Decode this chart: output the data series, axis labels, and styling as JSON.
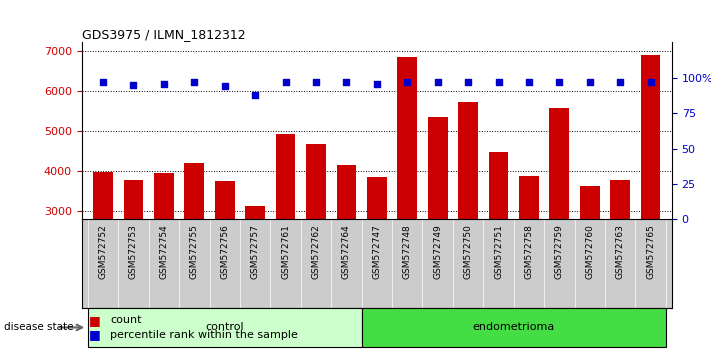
{
  "title": "GDS3975 / ILMN_1812312",
  "samples": [
    "GSM572752",
    "GSM572753",
    "GSM572754",
    "GSM572755",
    "GSM572756",
    "GSM572757",
    "GSM572761",
    "GSM572762",
    "GSM572764",
    "GSM572747",
    "GSM572748",
    "GSM572749",
    "GSM572750",
    "GSM572751",
    "GSM572758",
    "GSM572759",
    "GSM572760",
    "GSM572763",
    "GSM572765"
  ],
  "counts": [
    3980,
    3780,
    3950,
    4200,
    3750,
    3130,
    4920,
    4670,
    4160,
    3850,
    6830,
    5340,
    5730,
    4480,
    3880,
    5570,
    3640,
    3790,
    6880
  ],
  "percentile_ranks": [
    97,
    95,
    96,
    97,
    94,
    88,
    97,
    97,
    97,
    96,
    97,
    97,
    97,
    97,
    97,
    97,
    97,
    97,
    97
  ],
  "group_labels": [
    "control",
    "endometrioma"
  ],
  "group_sizes": [
    9,
    10
  ],
  "ylim_left": [
    2800,
    7200
  ],
  "ylim_right": [
    0,
    125
  ],
  "yticks_left": [
    3000,
    4000,
    5000,
    6000,
    7000
  ],
  "yticks_right": [
    0,
    25,
    50,
    75,
    100
  ],
  "bar_color": "#cc0000",
  "dot_color": "#0000cc",
  "bar_width": 0.65,
  "control_color": "#ccffcc",
  "endometrioma_color": "#44dd44",
  "label_bg_color": "#cccccc",
  "grid_color": "#000000",
  "title_color": "#000000",
  "left_axis_color": "#cc0000",
  "right_axis_color": "#0000cc",
  "n_control": 9,
  "n_endometrioma": 10
}
